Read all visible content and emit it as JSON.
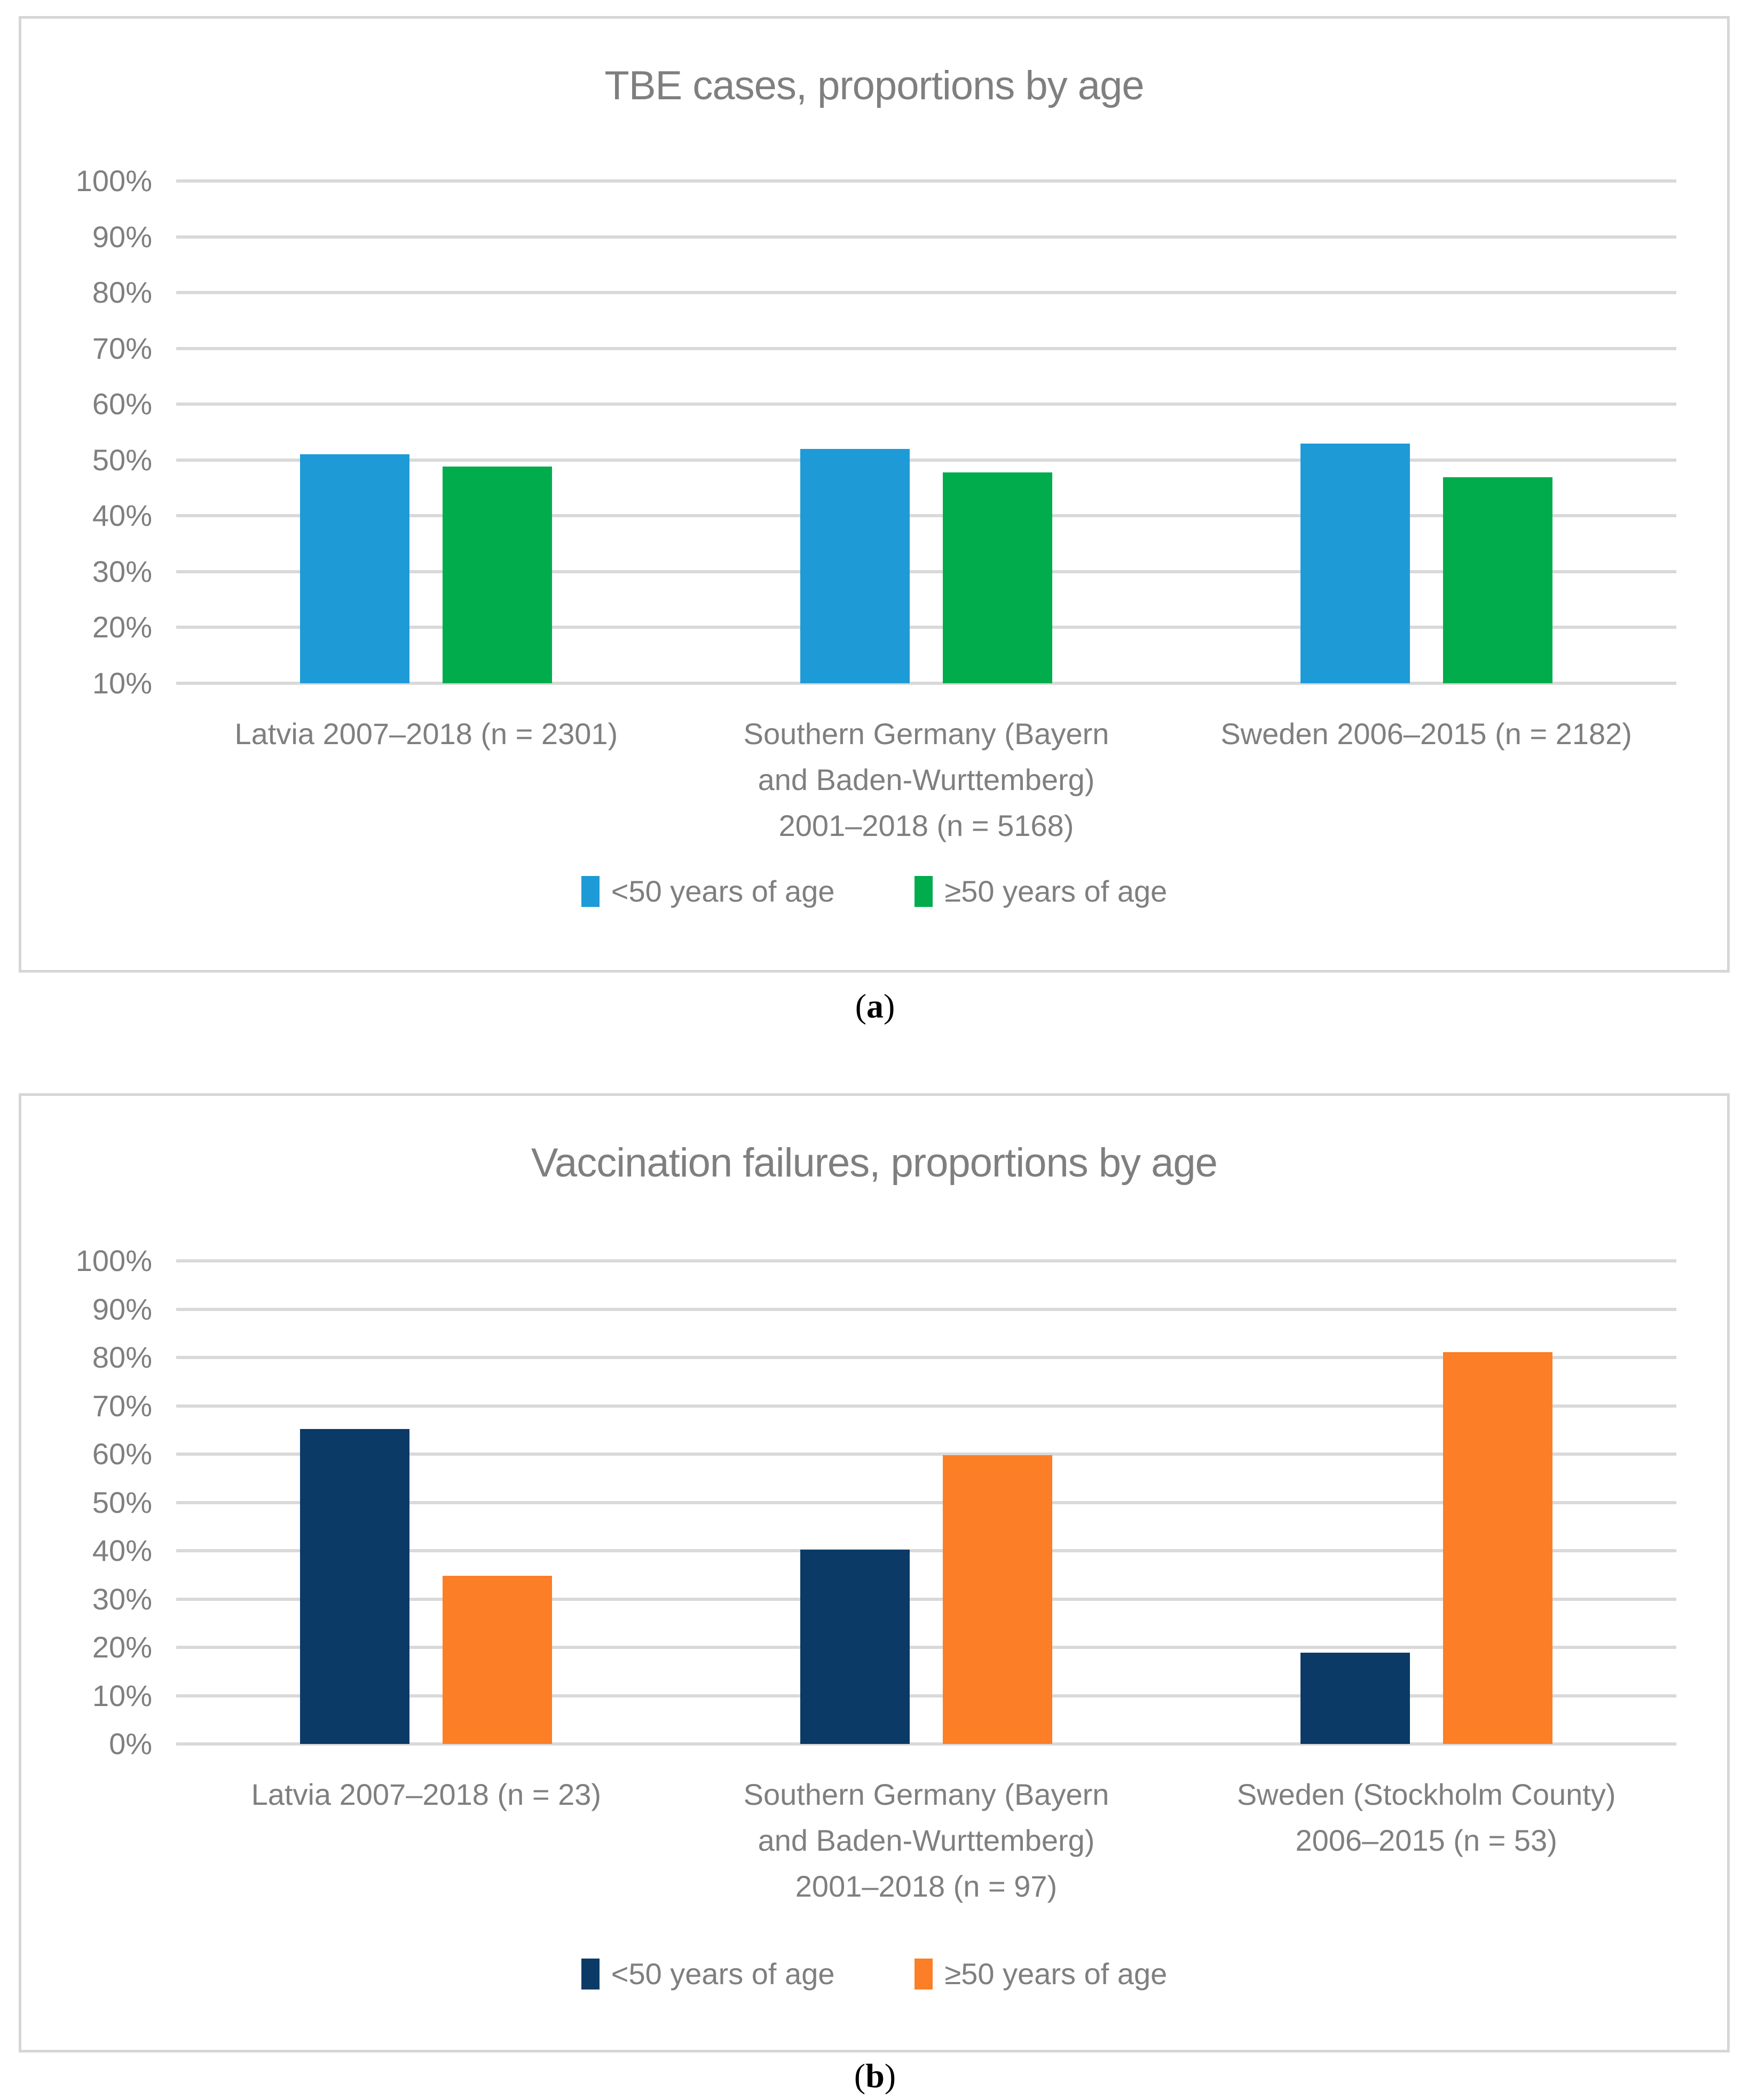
{
  "figure": {
    "captions": [
      {
        "open": "(",
        "letter": "a",
        "close": ")"
      },
      {
        "open": "(",
        "letter": "b",
        "close": ")"
      }
    ]
  },
  "colors": {
    "chart_a_under50": "#1E9BD7",
    "chart_a_over50": "#00AC4B",
    "chart_b_under50": "#0B3A66",
    "chart_b_over50": "#FC7E26",
    "gridline": "#D9D9D9",
    "panel_border": "#D6D6D6",
    "label_text": "#7F7F7F",
    "caption_text": "#000000"
  },
  "chart_data": [
    {
      "type": "bar",
      "title": "TBE cases, proportions by age",
      "categories": [
        "Latvia 2007–2018 (n = 2301)",
        "Southern Germany (Bayern\nand Baden-Wurttemberg)\n2001–2018 (n = 5168)",
        "Sweden 2006–2015 (n = 2182)"
      ],
      "series": [
        {
          "name": "<50 years of age",
          "color": "#1E9BD7",
          "values": [
            51.0,
            52.0,
            52.9
          ]
        },
        {
          "name": "≥50 years of age",
          "color": "#00AC4B",
          "values": [
            48.8,
            47.8,
            46.9
          ]
        }
      ],
      "xlabel": "",
      "ylabel": "",
      "ylim": [
        10,
        100
      ],
      "y_ticks": [
        "100%",
        "90%",
        "80%",
        "70%",
        "60%",
        "50%",
        "40%",
        "30%",
        "20%",
        "10%"
      ],
      "grid": true,
      "legend_position": "bottom"
    },
    {
      "type": "bar",
      "title": "Vaccination failures, proportions by age",
      "categories": [
        "Latvia 2007–2018 (n = 23)",
        "Southern Germany (Bayern\nand Baden-Wurttemberg)\n2001–2018 (n = 97)",
        "Sweden (Stockholm County)\n2006–2015 (n = 53)"
      ],
      "series": [
        {
          "name": "<50 years of age",
          "color": "#0B3A66",
          "values": [
            65.2,
            40.2,
            18.9
          ]
        },
        {
          "name": "≥50 years of age",
          "color": "#FC7E26",
          "values": [
            34.8,
            59.8,
            81.1
          ]
        }
      ],
      "xlabel": "",
      "ylabel": "",
      "ylim": [
        0,
        100
      ],
      "y_ticks": [
        "100%",
        "90%",
        "80%",
        "70%",
        "60%",
        "50%",
        "40%",
        "30%",
        "20%",
        "10%",
        "0%"
      ],
      "grid": true,
      "legend_position": "bottom"
    }
  ]
}
